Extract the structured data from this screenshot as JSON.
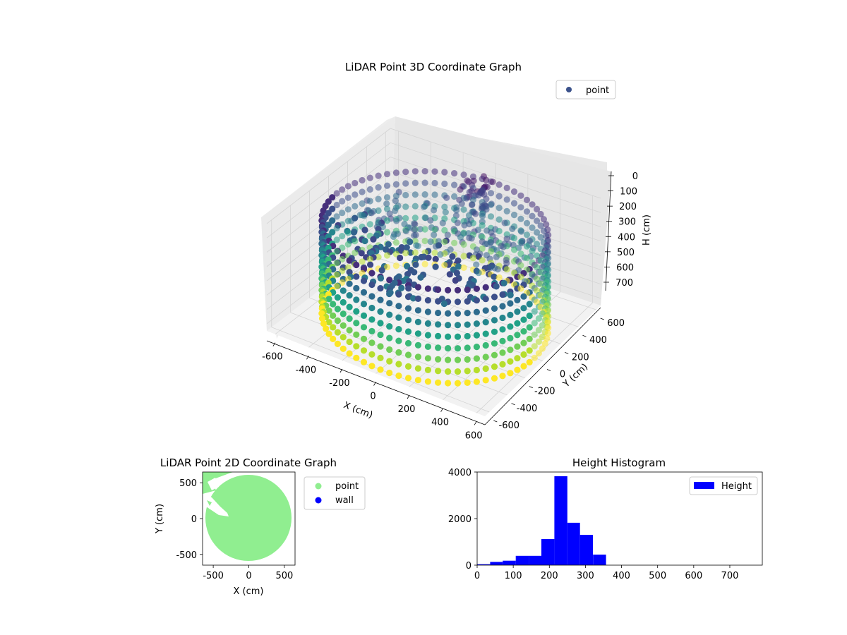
{
  "chart_data": [
    {
      "type": "scatter",
      "title": "LiDAR Point 3D Coordinate Graph",
      "projection": "3d",
      "xlabel": "X (cm)",
      "ylabel": "Y (cm)",
      "zlabel": "H (cm)",
      "xlim": [
        -650,
        650
      ],
      "ylim": [
        -650,
        650
      ],
      "zlim": [
        0,
        750
      ],
      "z_inverted": true,
      "x_ticks": [
        "-600",
        "-400",
        "-200",
        "0",
        "200",
        "400",
        "600"
      ],
      "y_ticks": [
        "-600",
        "-400",
        "-200",
        "0",
        "200",
        "400",
        "600"
      ],
      "z_ticks": [
        "0",
        "100",
        "200",
        "300",
        "400",
        "500",
        "600",
        "700"
      ],
      "grid": true,
      "legend": {
        "placement": "upper-right",
        "entries": [
          {
            "label": "point",
            "color": "#3b528b"
          }
        ]
      },
      "colormap": "viridis",
      "shape": {
        "wall_radius": 600,
        "wall_height": [
          100,
          750
        ]
      }
    },
    {
      "type": "scatter",
      "title": "LiDAR Point 2D Coordinate Graph",
      "xlabel": "X (cm)",
      "ylabel": "Y (cm)",
      "xlim": [
        -650,
        650
      ],
      "ylim": [
        -650,
        650
      ],
      "x_ticks": [
        "-500",
        "0",
        "500"
      ],
      "y_ticks": [
        "500",
        "0",
        "-500"
      ],
      "legend": {
        "placement": "outside-right",
        "entries": [
          {
            "label": "point",
            "color": "#90ee90"
          },
          {
            "label": "wall",
            "color": "#0000ff"
          }
        ]
      }
    },
    {
      "type": "bar",
      "title": "Height Histogram",
      "xlim": [
        0,
        790
      ],
      "ylim": [
        0,
        4000
      ],
      "x_ticks": [
        "0",
        "100",
        "200",
        "300",
        "400",
        "500",
        "600",
        "700"
      ],
      "y_ticks": [
        "0",
        "2000",
        "4000"
      ],
      "bar_color": "#0000ff",
      "legend": {
        "placement": "upper-right",
        "entries": [
          {
            "label": "Height",
            "color": "#0000ff"
          }
        ]
      },
      "bins": [
        {
          "x0": 0,
          "x1": 36,
          "count": 40
        },
        {
          "x0": 36,
          "x1": 71,
          "count": 140
        },
        {
          "x0": 71,
          "x1": 107,
          "count": 190
        },
        {
          "x0": 107,
          "x1": 143,
          "count": 400
        },
        {
          "x0": 143,
          "x1": 178,
          "count": 400
        },
        {
          "x0": 178,
          "x1": 214,
          "count": 1120
        },
        {
          "x0": 214,
          "x1": 250,
          "count": 3820
        },
        {
          "x0": 250,
          "x1": 285,
          "count": 1820
        },
        {
          "x0": 285,
          "x1": 321,
          "count": 1300
        },
        {
          "x0": 321,
          "x1": 357,
          "count": 450
        },
        {
          "x0": 357,
          "x1": 392,
          "count": 0
        },
        {
          "x0": 392,
          "x1": 428,
          "count": 0
        },
        {
          "x0": 428,
          "x1": 464,
          "count": 0
        },
        {
          "x0": 464,
          "x1": 499,
          "count": 0
        },
        {
          "x0": 499,
          "x1": 535,
          "count": 0
        },
        {
          "x0": 535,
          "x1": 571,
          "count": 0
        },
        {
          "x0": 571,
          "x1": 606,
          "count": 0
        },
        {
          "x0": 606,
          "x1": 642,
          "count": 0
        },
        {
          "x0": 642,
          "x1": 678,
          "count": 0
        },
        {
          "x0": 678,
          "x1": 713,
          "count": 0
        },
        {
          "x0": 713,
          "x1": 749,
          "count": 0
        },
        {
          "x0": 749,
          "x1": 785,
          "count": 0
        }
      ]
    }
  ]
}
